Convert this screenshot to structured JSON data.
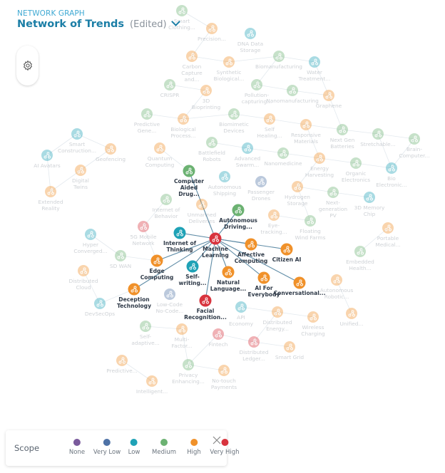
{
  "header": {
    "subtitle": "NETWORK GRAPH",
    "title": "Network of Trends",
    "edited_label": "(Edited)"
  },
  "toolbar": {
    "settings_icon": "gear-icon"
  },
  "scope_colors": {
    "None": "#7a5a9c",
    "Very Low": "#4e72a6",
    "Low": "#1fa2b6",
    "Medium": "#6cb272",
    "High": "#f0912a",
    "Very High": "#d8343e"
  },
  "legend": {
    "title": "Scope",
    "items": [
      {
        "label": "None",
        "color": "#7a5a9c"
      },
      {
        "label": "Very Low",
        "color": "#4e72a6"
      },
      {
        "label": "Low",
        "color": "#1fa2b6"
      },
      {
        "label": "Medium",
        "color": "#6cb272"
      },
      {
        "label": "High",
        "color": "#f0912a"
      },
      {
        "label": "Very High",
        "color": "#d8343e"
      }
    ],
    "close_icon": "close-icon"
  },
  "nodes": [
    {
      "label": "Smart\nClothing...",
      "scope": "Medium"
    },
    {
      "label": "Precision...",
      "scope": "High"
    },
    {
      "label": "DNA Data\nStorage",
      "scope": "Low"
    },
    {
      "label": "Carbon\nCapture\nand...",
      "scope": "High"
    },
    {
      "label": "Synthetic\nBiological...",
      "scope": "High"
    },
    {
      "label": "Biomanufacturing",
      "scope": "Medium"
    },
    {
      "label": "Water\nTreatment...",
      "scope": "Low"
    },
    {
      "label": "CRISPR",
      "scope": "Medium"
    },
    {
      "label": "3D\nBioprinting",
      "scope": "High"
    },
    {
      "label": "Pollution-\ncapturing...",
      "scope": "Medium"
    },
    {
      "label": "Nanomanufacturing",
      "scope": "Medium"
    },
    {
      "label": "Graphene",
      "scope": "High"
    },
    {
      "label": "Predictive\nGene...",
      "scope": "Medium"
    },
    {
      "label": "Biological\nProcess...",
      "scope": "High"
    },
    {
      "label": "Biomimetic\nDevices",
      "scope": "Medium"
    },
    {
      "label": "Self\nHealing...",
      "scope": "High"
    },
    {
      "label": "Responsive\nMaterials",
      "scope": "High"
    },
    {
      "label": "Next Gen\nBatteries",
      "scope": "Medium"
    },
    {
      "label": "Stretchable...",
      "scope": "Medium"
    },
    {
      "label": "Brain-\nComputer...",
      "scope": "Medium"
    },
    {
      "label": "Smart\nConstruction...",
      "scope": "Low"
    },
    {
      "label": "Geofencing",
      "scope": "High"
    },
    {
      "label": "Quantum\nComputing",
      "scope": "High"
    },
    {
      "label": "Battlefield\nRobots",
      "scope": "Medium"
    },
    {
      "label": "Advanced\nSwarm...",
      "scope": "Low"
    },
    {
      "label": "Nanomedicine",
      "scope": "Medium"
    },
    {
      "label": "Energy\nHarvesting",
      "scope": "High"
    },
    {
      "label": "Organic\nElectronics",
      "scope": "Medium"
    },
    {
      "label": "Bio\nElectronic...",
      "scope": "Low"
    },
    {
      "label": "AI Avatars",
      "scope": "Low"
    },
    {
      "label": "Digital\nTwins",
      "scope": "High"
    },
    {
      "label": "Extended\nReality",
      "scope": "High"
    },
    {
      "label": "Computer\nAided\nDrug...",
      "scope": "Medium",
      "highlighted": true
    },
    {
      "label": "Autonomous\nShipping",
      "scope": "Low"
    },
    {
      "label": "Passenger\nDrones",
      "scope": "Very Low"
    },
    {
      "label": "Hydrogen\nStorage",
      "scope": "High"
    },
    {
      "label": "Next-\ngeneration\nPV",
      "scope": "Medium"
    },
    {
      "label": "3D Memory\nChip",
      "scope": "Low"
    },
    {
      "label": "Internet of\nBehavior",
      "scope": "Medium"
    },
    {
      "label": "Unmanned\nDeliveries",
      "scope": "High"
    },
    {
      "label": "Autonomous\nDriving...",
      "scope": "Medium",
      "highlighted": true
    },
    {
      "label": "Eye-\ntracking...",
      "scope": "High"
    },
    {
      "label": "Floating\nWind Farms",
      "scope": "Medium"
    },
    {
      "label": "Portable\nMedical...",
      "scope": "High"
    },
    {
      "label": "5G Mobile\nNetwork",
      "scope": "Very High"
    },
    {
      "label": "Internet of\nThinking",
      "scope": "Low",
      "highlighted": true
    },
    {
      "label": "Machine\nLearning",
      "scope": "Very High",
      "highlighted": true
    },
    {
      "label": "Affective\nComputing",
      "scope": "High",
      "highlighted": true
    },
    {
      "label": "Citizen AI",
      "scope": "High",
      "highlighted": true
    },
    {
      "label": "Hyper\nConverged...",
      "scope": "Low"
    },
    {
      "label": "SD WAN",
      "scope": "Medium"
    },
    {
      "label": "Embedded\nHealth...",
      "scope": "Medium"
    },
    {
      "label": "Edge\nComputing",
      "scope": "High",
      "highlighted": true
    },
    {
      "label": "Self-\nwriting...",
      "scope": "Low",
      "highlighted": true
    },
    {
      "label": "Natural\nLanguage...",
      "scope": "High",
      "highlighted": true
    },
    {
      "label": "AI For\nEverybody",
      "scope": "High",
      "highlighted": true
    },
    {
      "label": "Conversational...",
      "scope": "High",
      "highlighted": true
    },
    {
      "label": "Distributed\nCloud",
      "scope": "High"
    },
    {
      "label": "Autonomous\nRobotic...",
      "scope": "High"
    },
    {
      "label": "Deception\nTechnology",
      "scope": "High",
      "highlighted": true
    },
    {
      "label": "Low-Code\nNo-Code...",
      "scope": "Very Low"
    },
    {
      "label": "Facial\nRecognition...",
      "scope": "Very High",
      "highlighted": true
    },
    {
      "label": "DevSecOps",
      "scope": "Low"
    },
    {
      "label": "API\nEconomy",
      "scope": "Low"
    },
    {
      "label": "Distributed\nEnergy...",
      "scope": "High"
    },
    {
      "label": "Wireless\nCharging",
      "scope": "High"
    },
    {
      "label": "Unified...",
      "scope": "High"
    },
    {
      "label": "Self-\nadaptive...",
      "scope": "Medium"
    },
    {
      "label": "Multi-\nFactor...",
      "scope": "High"
    },
    {
      "label": "Fintech",
      "scope": "Very High"
    },
    {
      "label": "Distributed\nLedger...",
      "scope": "Very High"
    },
    {
      "label": "Smart Grid",
      "scope": "High"
    },
    {
      "label": "Predictive...",
      "scope": "High"
    },
    {
      "label": "Privacy\nEnhancing...",
      "scope": "Medium"
    },
    {
      "label": "No-touch\nPayments",
      "scope": "High"
    },
    {
      "label": "Intelligent...",
      "scope": "High"
    }
  ],
  "edges": [
    [
      46,
      32
    ],
    [
      46,
      40
    ],
    [
      46,
      45
    ],
    [
      46,
      47
    ],
    [
      46,
      48
    ],
    [
      46,
      52
    ],
    [
      46,
      53
    ],
    [
      46,
      54
    ],
    [
      46,
      55
    ],
    [
      46,
      56
    ],
    [
      46,
      59
    ],
    [
      46,
      61
    ],
    [
      0,
      1
    ],
    [
      1,
      3
    ],
    [
      3,
      4
    ],
    [
      4,
      5
    ],
    [
      5,
      6
    ],
    [
      5,
      9
    ],
    [
      9,
      10
    ],
    [
      10,
      11
    ],
    [
      6,
      11
    ],
    [
      7,
      8
    ],
    [
      8,
      13
    ],
    [
      12,
      13
    ],
    [
      13,
      14
    ],
    [
      14,
      15
    ],
    [
      15,
      16
    ],
    [
      16,
      17
    ],
    [
      11,
      17
    ],
    [
      17,
      18
    ],
    [
      18,
      19
    ],
    [
      18,
      28
    ],
    [
      19,
      28
    ],
    [
      26,
      27
    ],
    [
      27,
      28
    ],
    [
      16,
      26
    ],
    [
      20,
      21
    ],
    [
      20,
      29
    ],
    [
      21,
      30
    ],
    [
      29,
      31
    ],
    [
      30,
      31
    ],
    [
      22,
      32
    ],
    [
      23,
      24
    ],
    [
      24,
      25
    ],
    [
      25,
      26
    ],
    [
      26,
      35
    ],
    [
      35,
      36
    ],
    [
      36,
      37
    ],
    [
      38,
      44
    ],
    [
      44,
      52
    ],
    [
      49,
      50
    ],
    [
      50,
      52
    ],
    [
      57,
      62
    ],
    [
      62,
      59
    ],
    [
      67,
      68
    ],
    [
      68,
      73
    ],
    [
      69,
      70
    ],
    [
      70,
      71
    ],
    [
      73,
      74
    ],
    [
      69,
      73
    ],
    [
      72,
      75
    ],
    [
      63,
      64
    ],
    [
      64,
      70
    ],
    [
      64,
      65
    ],
    [
      42,
      35
    ],
    [
      43,
      51
    ],
    [
      58,
      66
    ],
    [
      41,
      42
    ]
  ]
}
